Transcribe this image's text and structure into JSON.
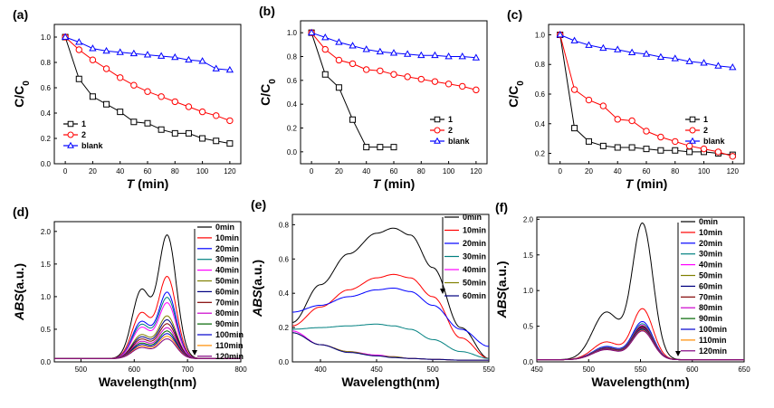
{
  "chart_data": [
    {
      "id": "a",
      "type": "line",
      "panel_label": "(a)",
      "xlabel": "T",
      "xunit": " (min)",
      "ylabel": "C/C",
      "ysub": "0",
      "xlim": [
        -8,
        128
      ],
      "ylim": [
        0,
        1.1
      ],
      "xticks": [
        0,
        20,
        40,
        60,
        80,
        100,
        120
      ],
      "yticks": [
        0.0,
        0.2,
        0.4,
        0.6,
        0.8,
        1.0
      ],
      "legend": "bottom-left",
      "series": [
        {
          "name": "1",
          "color": "#000000",
          "marker": "square",
          "x": [
            0,
            10,
            20,
            30,
            40,
            50,
            60,
            70,
            80,
            90,
            100,
            110,
            120
          ],
          "y": [
            1.0,
            0.67,
            0.53,
            0.47,
            0.41,
            0.33,
            0.32,
            0.27,
            0.24,
            0.24,
            0.2,
            0.18,
            0.16
          ]
        },
        {
          "name": "2",
          "color": "#ff0000",
          "marker": "circle",
          "x": [
            0,
            10,
            20,
            30,
            40,
            50,
            60,
            70,
            80,
            90,
            100,
            110,
            120
          ],
          "y": [
            1.0,
            0.9,
            0.82,
            0.75,
            0.68,
            0.62,
            0.57,
            0.53,
            0.49,
            0.45,
            0.41,
            0.38,
            0.34
          ]
        },
        {
          "name": "blank",
          "color": "#0000ff",
          "marker": "triangle",
          "x": [
            0,
            10,
            20,
            30,
            40,
            50,
            60,
            70,
            80,
            90,
            100,
            110,
            120
          ],
          "y": [
            1.0,
            0.96,
            0.91,
            0.89,
            0.88,
            0.87,
            0.86,
            0.85,
            0.84,
            0.82,
            0.81,
            0.75,
            0.74
          ]
        }
      ]
    },
    {
      "id": "b",
      "type": "line",
      "panel_label": "(b)",
      "xlabel": "T",
      "xunit": " (min)",
      "ylabel": "C/C",
      "ysub": "0",
      "xlim": [
        -8,
        128
      ],
      "ylim": [
        -0.1,
        1.1
      ],
      "xticks": [
        0,
        20,
        40,
        60,
        80,
        100,
        120
      ],
      "yticks": [
        0.0,
        0.2,
        0.4,
        0.6,
        0.8,
        1.0
      ],
      "legend": "bottom-center",
      "series": [
        {
          "name": "1",
          "color": "#000000",
          "marker": "square",
          "x": [
            0,
            10,
            20,
            30,
            40,
            50,
            60
          ],
          "y": [
            1.0,
            0.65,
            0.54,
            0.27,
            0.04,
            0.04,
            0.04
          ]
        },
        {
          "name": "2",
          "color": "#ff0000",
          "marker": "circle",
          "x": [
            0,
            10,
            20,
            30,
            40,
            50,
            60,
            70,
            80,
            90,
            100,
            110,
            120
          ],
          "y": [
            1.0,
            0.86,
            0.77,
            0.74,
            0.69,
            0.68,
            0.65,
            0.63,
            0.61,
            0.59,
            0.57,
            0.55,
            0.52
          ]
        },
        {
          "name": "blank",
          "color": "#0000ff",
          "marker": "triangle",
          "x": [
            0,
            10,
            20,
            30,
            40,
            50,
            60,
            70,
            80,
            90,
            100,
            110,
            120
          ],
          "y": [
            1.0,
            0.96,
            0.92,
            0.89,
            0.86,
            0.84,
            0.83,
            0.82,
            0.81,
            0.81,
            0.8,
            0.8,
            0.79
          ]
        }
      ]
    },
    {
      "id": "c",
      "type": "line",
      "panel_label": "(c)",
      "xlabel": "T",
      "xunit": " (min)",
      "ylabel": "C/C",
      "ysub": "0",
      "xlim": [
        -8,
        128
      ],
      "ylim": [
        0.13,
        1.07
      ],
      "xticks": [
        0,
        20,
        40,
        60,
        80,
        100,
        120
      ],
      "yticks": [
        0.2,
        0.4,
        0.6,
        0.8,
        1.0
      ],
      "legend": "right",
      "series": [
        {
          "name": "1",
          "color": "#000000",
          "marker": "square",
          "x": [
            0,
            10,
            20,
            30,
            40,
            50,
            60,
            70,
            80,
            90,
            100,
            110,
            120
          ],
          "y": [
            1.0,
            0.37,
            0.28,
            0.25,
            0.24,
            0.24,
            0.23,
            0.22,
            0.22,
            0.21,
            0.21,
            0.2,
            0.19
          ]
        },
        {
          "name": "2",
          "color": "#ff0000",
          "marker": "circle",
          "x": [
            0,
            10,
            20,
            30,
            40,
            50,
            60,
            70,
            80,
            90,
            100,
            110,
            120
          ],
          "y": [
            1.0,
            0.63,
            0.56,
            0.52,
            0.43,
            0.42,
            0.35,
            0.31,
            0.28,
            0.25,
            0.23,
            0.21,
            0.18
          ]
        },
        {
          "name": "blank",
          "color": "#0000ff",
          "marker": "triangle",
          "x": [
            0,
            10,
            20,
            30,
            40,
            50,
            60,
            70,
            80,
            90,
            100,
            110,
            120
          ],
          "y": [
            1.0,
            0.96,
            0.93,
            0.91,
            0.9,
            0.88,
            0.87,
            0.85,
            0.84,
            0.82,
            0.81,
            0.79,
            0.78
          ]
        }
      ]
    },
    {
      "id": "d",
      "type": "line",
      "panel_label": "(d)",
      "xlabel": "Wavelength(nm)",
      "ylabel": "ABS",
      "yunit": "(a.u.)",
      "xlim": [
        450,
        800
      ],
      "ylim": [
        0,
        2.15
      ],
      "xticks": [
        500,
        600,
        700,
        800
      ],
      "yticks": [
        0.0,
        0.5,
        1.0,
        1.5,
        2.0
      ],
      "legend": "right",
      "legend_arrow": "down",
      "shape": {
        "type": "two_band",
        "baseline": 0.05,
        "c1": 613,
        "w1": 17,
        "r1": 0.55,
        "c2": 662,
        "w2": 17,
        "cutoff": 740
      },
      "series": [
        {
          "name": "0min",
          "color": "#000000",
          "peak": 1.93
        },
        {
          "name": "10min",
          "color": "#ff0000",
          "peak": 1.3
        },
        {
          "name": "20min",
          "color": "#0000ff",
          "peak": 1.06
        },
        {
          "name": "30min",
          "color": "#008080",
          "peak": 0.98
        },
        {
          "name": "40min",
          "color": "#ff00ff",
          "peak": 0.9
        },
        {
          "name": "50min",
          "color": "#808000",
          "peak": 0.7
        },
        {
          "name": "60min",
          "color": "#000080",
          "peak": 0.64
        },
        {
          "name": "70min",
          "color": "#800000",
          "peak": 0.58
        },
        {
          "name": "80min",
          "color": "#cc00cc",
          "peak": 0.52
        },
        {
          "name": "90min",
          "color": "#006400",
          "peak": 0.47
        },
        {
          "name": "100min",
          "color": "#0000cd",
          "peak": 0.43
        },
        {
          "name": "110min",
          "color": "#ff8c00",
          "peak": 0.39
        },
        {
          "name": "120min",
          "color": "#800080",
          "peak": 0.35
        }
      ]
    },
    {
      "id": "e",
      "type": "line",
      "panel_label": "(e)",
      "xlabel": "Wavelength(nm)",
      "ylabel": "ABS",
      "yunit": "(a.u.)",
      "xlim": [
        375,
        550
      ],
      "ylim": [
        0,
        0.86
      ],
      "xticks": [
        400,
        450,
        500,
        550
      ],
      "yticks": [
        0.0,
        0.2,
        0.4,
        0.6,
        0.8
      ],
      "legend": "top-right",
      "legend_arrow": "down",
      "series": [
        {
          "name": "0min",
          "color": "#000000",
          "x": [
            375,
            400,
            425,
            450,
            465,
            480,
            500,
            525,
            550
          ],
          "y": [
            0.23,
            0.45,
            0.63,
            0.75,
            0.78,
            0.74,
            0.55,
            0.2,
            0.02
          ]
        },
        {
          "name": "10min",
          "color": "#ff0000",
          "x": [
            375,
            400,
            425,
            450,
            465,
            480,
            500,
            525,
            550
          ],
          "y": [
            0.21,
            0.32,
            0.42,
            0.49,
            0.51,
            0.49,
            0.38,
            0.14,
            0.02
          ]
        },
        {
          "name": "20min",
          "color": "#0000ff",
          "x": [
            375,
            400,
            425,
            450,
            465,
            480,
            500,
            525,
            550
          ],
          "y": [
            0.29,
            0.33,
            0.38,
            0.42,
            0.43,
            0.41,
            0.33,
            0.19,
            0.09
          ]
        },
        {
          "name": "30min",
          "color": "#008080",
          "x": [
            375,
            400,
            425,
            450,
            465,
            480,
            500,
            525,
            550
          ],
          "y": [
            0.19,
            0.2,
            0.21,
            0.22,
            0.21,
            0.19,
            0.13,
            0.06,
            0.02
          ]
        },
        {
          "name": "40min",
          "color": "#ff00ff",
          "x": [
            375,
            400,
            425,
            450,
            465,
            480,
            500,
            525,
            550
          ],
          "y": [
            0.18,
            0.1,
            0.06,
            0.04,
            0.03,
            0.02,
            0.015,
            0.01,
            0.01
          ]
        },
        {
          "name": "50min",
          "color": "#808000",
          "x": [
            375,
            400,
            425,
            450,
            465,
            480,
            500,
            525,
            550
          ],
          "y": [
            0.17,
            0.1,
            0.06,
            0.035,
            0.03,
            0.02,
            0.015,
            0.01,
            0.01
          ]
        },
        {
          "name": "60min",
          "color": "#000080",
          "x": [
            375,
            400,
            425,
            450,
            465,
            480,
            500,
            525,
            550
          ],
          "y": [
            0.17,
            0.1,
            0.055,
            0.035,
            0.025,
            0.02,
            0.015,
            0.01,
            0.01
          ]
        }
      ]
    },
    {
      "id": "f",
      "type": "line",
      "panel_label": "(f)",
      "xlabel": "Wavelength(nm)",
      "ylabel": "ABS",
      "yunit": "(a.u.)",
      "xlim": [
        450,
        650
      ],
      "ylim": [
        0,
        2.03
      ],
      "xticks": [
        450,
        500,
        550,
        600,
        650
      ],
      "yticks": [
        0.0,
        0.5,
        1.0,
        1.5,
        2.0
      ],
      "legend": "right",
      "legend_arrow": "down",
      "shape": {
        "type": "two_band",
        "baseline": 0.03,
        "c1": 517,
        "w1": 13,
        "r1": 0.35,
        "c2": 552,
        "w2": 10,
        "cutoff": 590
      },
      "series": [
        {
          "name": "0min",
          "color": "#000000",
          "peak": 1.93
        },
        {
          "name": "10min",
          "color": "#ff0000",
          "peak": 0.74
        },
        {
          "name": "20min",
          "color": "#0000ff",
          "peak": 0.56
        },
        {
          "name": "30min",
          "color": "#008080",
          "peak": 0.53
        },
        {
          "name": "40min",
          "color": "#ff00ff",
          "peak": 0.51
        },
        {
          "name": "50min",
          "color": "#808000",
          "peak": 0.5
        },
        {
          "name": "60min",
          "color": "#000080",
          "peak": 0.49
        },
        {
          "name": "70min",
          "color": "#800000",
          "peak": 0.48
        },
        {
          "name": "80min",
          "color": "#cc00cc",
          "peak": 0.47
        },
        {
          "name": "90min",
          "color": "#006400",
          "peak": 0.46
        },
        {
          "name": "100min",
          "color": "#0000cd",
          "peak": 0.45
        },
        {
          "name": "110min",
          "color": "#ff8c00",
          "peak": 0.44
        },
        {
          "name": "120min",
          "color": "#800080",
          "peak": 0.43
        }
      ]
    }
  ]
}
